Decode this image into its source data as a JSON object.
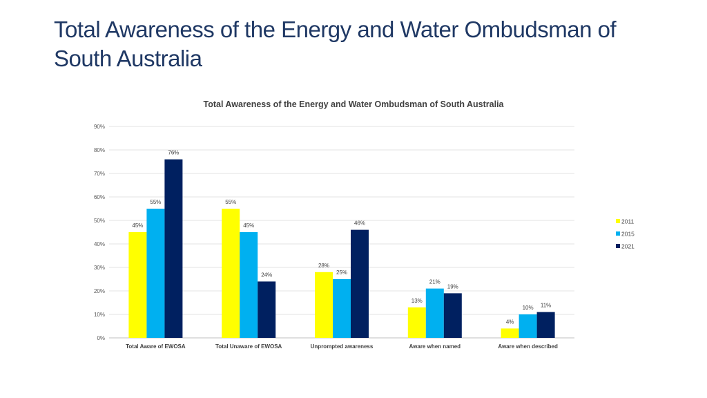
{
  "slide": {
    "title_line1": "Total Awareness of the Energy and Water Ombudsman of",
    "title_line2": "South Australia"
  },
  "chart_data": {
    "type": "bar",
    "title": "Total Awareness of the Energy and Water Ombudsman of South Australia",
    "xlabel": "",
    "ylabel": "",
    "ylim": [
      0,
      90
    ],
    "yticks": [
      0,
      10,
      20,
      30,
      40,
      50,
      60,
      70,
      80,
      90
    ],
    "ytick_labels": [
      "0%",
      "10%",
      "20%",
      "30%",
      "40%",
      "50%",
      "60%",
      "70%",
      "80%",
      "90%"
    ],
    "grid": true,
    "legend_position": "right",
    "categories": [
      "Total Aware of EWOSA",
      "Total Unaware of EWOSA",
      "Unprompted awareness",
      "Aware when named",
      "Aware when described"
    ],
    "series": [
      {
        "name": "2011",
        "color": "#ffff00",
        "values": [
          45,
          55,
          28,
          13,
          4
        ],
        "labels": [
          "45%",
          "55%",
          "28%",
          "13%",
          "4%"
        ]
      },
      {
        "name": "2015",
        "color": "#00b0f0",
        "values": [
          55,
          45,
          25,
          21,
          10
        ],
        "labels": [
          "55%",
          "45%",
          "25%",
          "21%",
          "10%"
        ]
      },
      {
        "name": "2021",
        "color": "#002060",
        "values": [
          76,
          24,
          46,
          19,
          11
        ],
        "labels": [
          "76%",
          "24%",
          "46%",
          "19%",
          "11%"
        ]
      }
    ]
  }
}
